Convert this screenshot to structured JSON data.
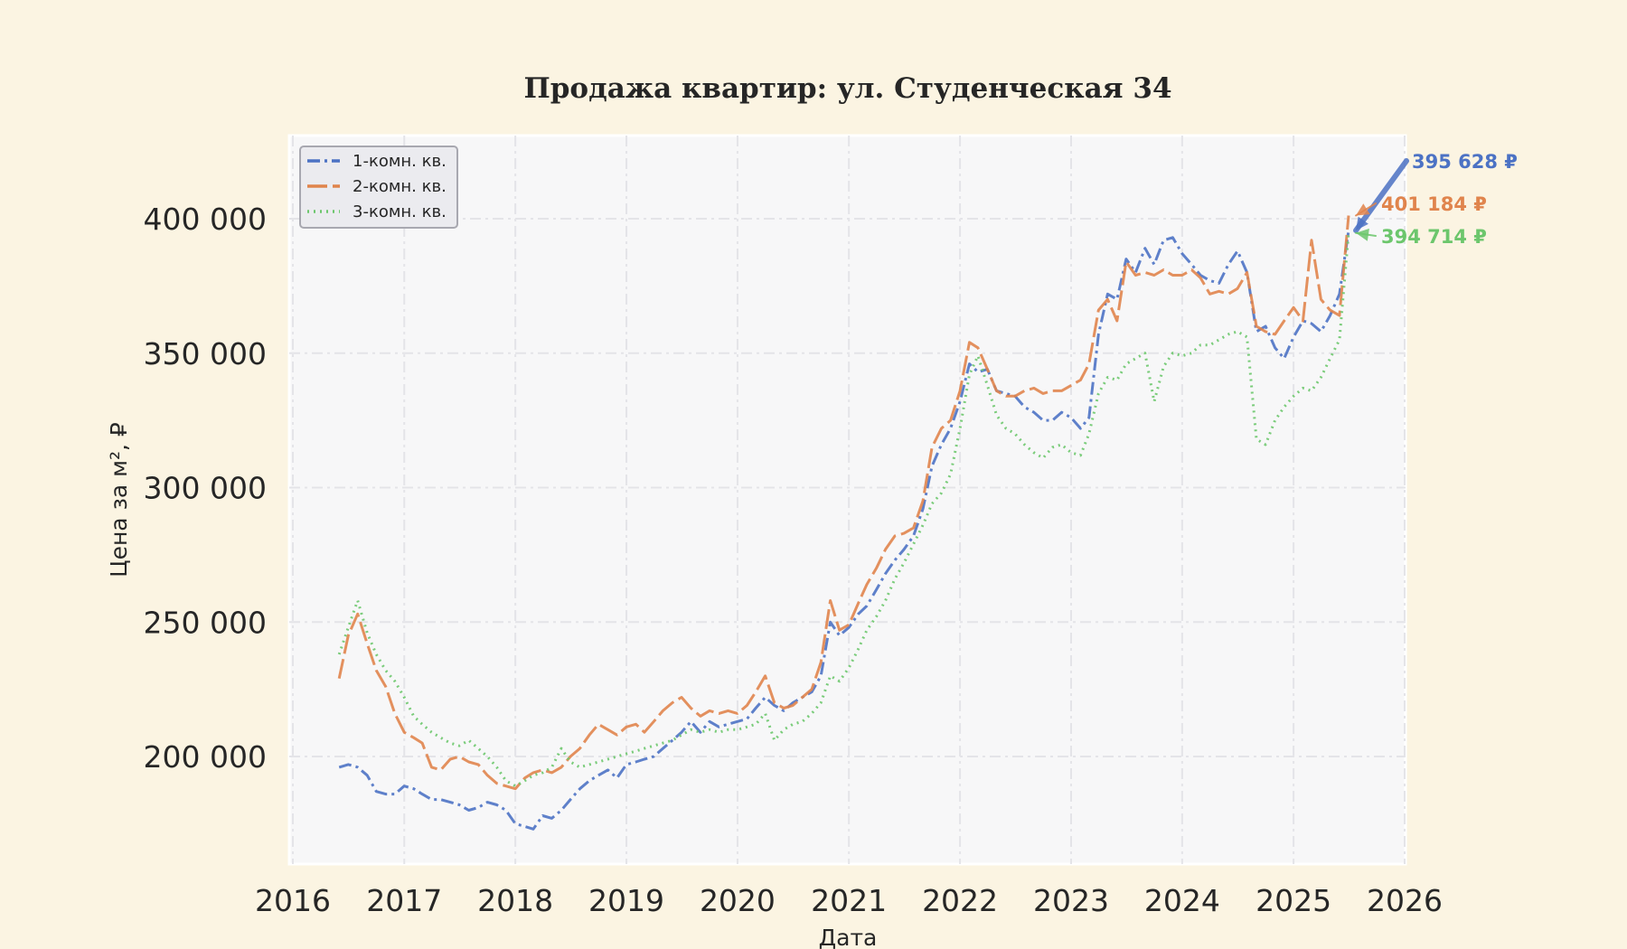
{
  "chart_data": {
    "type": "line",
    "title": "Продажа квартир: ул. Студенческая 34",
    "xlabel": "Дата",
    "ylabel": "Цена за м², ₽",
    "x_type": "date",
    "xlim": [
      "2016-01-01",
      "2026-01-01"
    ],
    "ylim": [
      160000,
      430000
    ],
    "x_ticks": [
      "2016",
      "2017",
      "2018",
      "2019",
      "2020",
      "2021",
      "2022",
      "2023",
      "2024",
      "2025",
      "2026"
    ],
    "y_ticks": [
      200000,
      250000,
      300000,
      350000,
      400000
    ],
    "y_tick_labels": [
      "200 000",
      "250 000",
      "300 000",
      "350 000",
      "400 000"
    ],
    "grid": true,
    "legend_position": "top-left",
    "series": [
      {
        "name": "1-комн. кв.",
        "color": "#4c72c4",
        "dash": "dashdot",
        "x": [
          "2016-06-01",
          "2016-07-01",
          "2016-08-01",
          "2016-09-01",
          "2016-10-01",
          "2016-11-01",
          "2016-12-01",
          "2017-01-01",
          "2017-02-01",
          "2017-03-01",
          "2017-04-01",
          "2017-05-01",
          "2017-06-01",
          "2017-07-01",
          "2017-08-01",
          "2017-09-01",
          "2017-10-01",
          "2017-11-01",
          "2017-12-01",
          "2018-01-01",
          "2018-02-01",
          "2018-03-01",
          "2018-04-01",
          "2018-05-01",
          "2018-06-01",
          "2018-07-01",
          "2018-08-01",
          "2018-09-01",
          "2018-10-01",
          "2018-11-01",
          "2018-12-01",
          "2019-01-01",
          "2019-02-01",
          "2019-03-01",
          "2019-04-01",
          "2019-05-01",
          "2019-06-01",
          "2019-07-01",
          "2019-08-01",
          "2019-09-01",
          "2019-10-01",
          "2019-11-01",
          "2019-12-01",
          "2020-01-01",
          "2020-02-01",
          "2020-03-01",
          "2020-04-01",
          "2020-05-01",
          "2020-06-01",
          "2020-07-01",
          "2020-08-01",
          "2020-09-01",
          "2020-10-01",
          "2020-11-01",
          "2020-12-01",
          "2021-01-01",
          "2021-02-01",
          "2021-03-01",
          "2021-04-01",
          "2021-05-01",
          "2021-06-01",
          "2021-07-01",
          "2021-08-01",
          "2021-09-01",
          "2021-10-01",
          "2021-11-01",
          "2021-12-01",
          "2022-01-01",
          "2022-02-01",
          "2022-03-01",
          "2022-04-01",
          "2022-05-01",
          "2022-06-01",
          "2022-07-01",
          "2022-08-01",
          "2022-09-01",
          "2022-10-01",
          "2022-11-01",
          "2022-12-01",
          "2023-01-01",
          "2023-02-01",
          "2023-03-01",
          "2023-04-01",
          "2023-05-01",
          "2023-06-01",
          "2023-07-01",
          "2023-08-01",
          "2023-09-01",
          "2023-10-01",
          "2023-11-01",
          "2023-12-01",
          "2024-01-01",
          "2024-02-01",
          "2024-03-01",
          "2024-04-01",
          "2024-05-01",
          "2024-06-01",
          "2024-07-01",
          "2024-08-01",
          "2024-09-01",
          "2024-10-01",
          "2024-11-01",
          "2024-12-01",
          "2025-01-01",
          "2025-02-01",
          "2025-03-01",
          "2025-04-01",
          "2025-05-01",
          "2025-06-01",
          "2025-07-01"
        ],
        "y": [
          196000,
          197000,
          196000,
          193000,
          187000,
          186000,
          186000,
          189000,
          188000,
          186000,
          184000,
          184000,
          183000,
          182000,
          180000,
          181000,
          183000,
          182000,
          180000,
          175000,
          174000,
          173000,
          178000,
          177000,
          180000,
          184000,
          188000,
          191000,
          193000,
          195000,
          192000,
          197000,
          198000,
          199000,
          200000,
          203000,
          206000,
          209000,
          213000,
          209000,
          213000,
          211000,
          212000,
          213000,
          214000,
          218000,
          222000,
          219000,
          217000,
          220000,
          222000,
          224000,
          230000,
          250000,
          245000,
          248000,
          253000,
          256000,
          262000,
          268000,
          273000,
          277000,
          282000,
          292000,
          308000,
          316000,
          322000,
          332000,
          346000,
          343000,
          344000,
          336000,
          335000,
          334000,
          330000,
          328000,
          325000,
          325000,
          328000,
          326000,
          322000,
          326000,
          357000,
          372000,
          370000,
          385000,
          380000,
          389000,
          383000,
          392000,
          393000,
          387000,
          383000,
          379000,
          377000,
          376000,
          383000,
          388000,
          380000,
          358000,
          360000,
          352000,
          348000,
          356000,
          362000,
          361000,
          358000,
          364000,
          372000,
          395628
        ]
      },
      {
        "name": "2-комн. кв.",
        "color": "#e0844c",
        "dash": "longdash",
        "x": [
          "2016-06-01",
          "2016-07-01",
          "2016-08-01",
          "2016-09-01",
          "2016-10-01",
          "2016-11-01",
          "2016-12-01",
          "2017-01-01",
          "2017-02-01",
          "2017-03-01",
          "2017-04-01",
          "2017-05-01",
          "2017-06-01",
          "2017-07-01",
          "2017-08-01",
          "2017-09-01",
          "2017-10-01",
          "2017-11-01",
          "2017-12-01",
          "2018-01-01",
          "2018-02-01",
          "2018-03-01",
          "2018-04-01",
          "2018-05-01",
          "2018-06-01",
          "2018-07-01",
          "2018-08-01",
          "2018-09-01",
          "2018-10-01",
          "2018-11-01",
          "2018-12-01",
          "2019-01-01",
          "2019-02-01",
          "2019-03-01",
          "2019-04-01",
          "2019-05-01",
          "2019-06-01",
          "2019-07-01",
          "2019-08-01",
          "2019-09-01",
          "2019-10-01",
          "2019-11-01",
          "2019-12-01",
          "2020-01-01",
          "2020-02-01",
          "2020-03-01",
          "2020-04-01",
          "2020-05-01",
          "2020-06-01",
          "2020-07-01",
          "2020-08-01",
          "2020-09-01",
          "2020-10-01",
          "2020-11-01",
          "2020-12-01",
          "2021-01-01",
          "2021-02-01",
          "2021-03-01",
          "2021-04-01",
          "2021-05-01",
          "2021-06-01",
          "2021-07-01",
          "2021-08-01",
          "2021-09-01",
          "2021-10-01",
          "2021-11-01",
          "2021-12-01",
          "2022-01-01",
          "2022-02-01",
          "2022-03-01",
          "2022-04-01",
          "2022-05-01",
          "2022-06-01",
          "2022-07-01",
          "2022-08-01",
          "2022-09-01",
          "2022-10-01",
          "2022-11-01",
          "2022-12-01",
          "2023-01-01",
          "2023-02-01",
          "2023-03-01",
          "2023-04-01",
          "2023-05-01",
          "2023-06-01",
          "2023-07-01",
          "2023-08-01",
          "2023-09-01",
          "2023-10-01",
          "2023-11-01",
          "2023-12-01",
          "2024-01-01",
          "2024-02-01",
          "2024-03-01",
          "2024-04-01",
          "2024-05-01",
          "2024-06-01",
          "2024-07-01",
          "2024-08-01",
          "2024-09-01",
          "2024-10-01",
          "2024-11-01",
          "2024-12-01",
          "2025-01-01",
          "2025-02-01",
          "2025-03-01",
          "2025-04-01",
          "2025-05-01",
          "2025-06-01",
          "2025-07-01"
        ],
        "y": [
          229000,
          245000,
          253000,
          242000,
          232000,
          226000,
          216000,
          209000,
          207000,
          205000,
          196000,
          195000,
          199000,
          200000,
          198000,
          197000,
          193000,
          190000,
          189000,
          188000,
          192000,
          194000,
          195000,
          194000,
          196000,
          200000,
          203000,
          208000,
          212000,
          210000,
          208000,
          211000,
          212000,
          209000,
          213000,
          217000,
          220000,
          222000,
          218000,
          215000,
          217000,
          216000,
          217000,
          216000,
          219000,
          224000,
          230000,
          220000,
          218000,
          219000,
          222000,
          225000,
          235000,
          258000,
          247000,
          249000,
          257000,
          264000,
          270000,
          277000,
          282000,
          283000,
          285000,
          295000,
          315000,
          322000,
          325000,
          336000,
          354000,
          352000,
          344000,
          336000,
          334000,
          334000,
          336000,
          337000,
          335000,
          336000,
          336000,
          338000,
          340000,
          346000,
          366000,
          370000,
          362000,
          384000,
          379000,
          380000,
          379000,
          381000,
          379000,
          379000,
          381000,
          378000,
          372000,
          373000,
          372000,
          374000,
          380000,
          360000,
          358000,
          357000,
          362000,
          367000,
          362000,
          392000,
          370000,
          366000,
          364000,
          401184
        ]
      },
      {
        "name": "3-комн. кв.",
        "color": "#6cc66c",
        "dash": "dotted",
        "x": [
          "2016-06-01",
          "2016-07-01",
          "2016-08-01",
          "2016-09-01",
          "2016-10-01",
          "2016-11-01",
          "2016-12-01",
          "2017-01-01",
          "2017-02-01",
          "2017-03-01",
          "2017-04-01",
          "2017-05-01",
          "2017-06-01",
          "2017-07-01",
          "2017-08-01",
          "2017-09-01",
          "2017-10-01",
          "2017-11-01",
          "2017-12-01",
          "2018-01-01",
          "2018-02-01",
          "2018-03-01",
          "2018-04-01",
          "2018-05-01",
          "2018-06-01",
          "2018-07-01",
          "2018-08-01",
          "2018-09-01",
          "2018-10-01",
          "2018-11-01",
          "2018-12-01",
          "2019-01-01",
          "2019-02-01",
          "2019-03-01",
          "2019-04-01",
          "2019-05-01",
          "2019-06-01",
          "2019-07-01",
          "2019-08-01",
          "2019-09-01",
          "2019-10-01",
          "2019-11-01",
          "2019-12-01",
          "2020-01-01",
          "2020-02-01",
          "2020-03-01",
          "2020-04-01",
          "2020-05-01",
          "2020-06-01",
          "2020-07-01",
          "2020-08-01",
          "2020-09-01",
          "2020-10-01",
          "2020-11-01",
          "2020-12-01",
          "2021-01-01",
          "2021-02-01",
          "2021-03-01",
          "2021-04-01",
          "2021-05-01",
          "2021-06-01",
          "2021-07-01",
          "2021-08-01",
          "2021-09-01",
          "2021-10-01",
          "2021-11-01",
          "2021-12-01",
          "2022-01-01",
          "2022-02-01",
          "2022-03-01",
          "2022-04-01",
          "2022-05-01",
          "2022-06-01",
          "2022-07-01",
          "2022-08-01",
          "2022-09-01",
          "2022-10-01",
          "2022-11-01",
          "2022-12-01",
          "2023-01-01",
          "2023-02-01",
          "2023-03-01",
          "2023-04-01",
          "2023-05-01",
          "2023-06-01",
          "2023-07-01",
          "2023-08-01",
          "2023-09-01",
          "2023-10-01",
          "2023-11-01",
          "2023-12-01",
          "2024-01-01",
          "2024-02-01",
          "2024-03-01",
          "2024-04-01",
          "2024-05-01",
          "2024-06-01",
          "2024-07-01",
          "2024-08-01",
          "2024-09-01",
          "2024-10-01",
          "2024-11-01",
          "2024-12-01",
          "2025-01-01",
          "2025-02-01",
          "2025-03-01",
          "2025-04-01",
          "2025-05-01",
          "2025-06-01",
          "2025-07-01"
        ],
        "y": [
          238000,
          248000,
          258000,
          246000,
          238000,
          232000,
          228000,
          222000,
          215000,
          212000,
          209000,
          207000,
          205000,
          204000,
          206000,
          203000,
          200000,
          196000,
          191000,
          189000,
          191000,
          193000,
          194000,
          196000,
          203000,
          198000,
          196000,
          197000,
          198000,
          199000,
          200000,
          201000,
          202000,
          203000,
          204000,
          205000,
          206000,
          208000,
          210000,
          209000,
          210000,
          209000,
          210000,
          210000,
          211000,
          212000,
          216000,
          206000,
          210000,
          212000,
          213000,
          216000,
          220000,
          230000,
          228000,
          233000,
          240000,
          247000,
          252000,
          258000,
          266000,
          272000,
          279000,
          286000,
          294000,
          298000,
          305000,
          322000,
          342000,
          349000,
          338000,
          327000,
          322000,
          320000,
          316000,
          313000,
          311000,
          315000,
          316000,
          313000,
          312000,
          320000,
          335000,
          341000,
          340000,
          346000,
          348000,
          350000,
          332000,
          345000,
          350000,
          349000,
          350000,
          353000,
          353000,
          355000,
          357000,
          358000,
          356000,
          318000,
          316000,
          325000,
          330000,
          334000,
          337000,
          336000,
          341000,
          348000,
          355000,
          394714
        ]
      }
    ],
    "annotations": [
      {
        "series": 0,
        "text": "395 628 ₽",
        "color": "#4c72c4"
      },
      {
        "series": 1,
        "text": "401 184 ₽",
        "color": "#e0844c"
      },
      {
        "series": 2,
        "text": "394 714 ₽",
        "color": "#6cc66c"
      }
    ],
    "colors": {
      "page_bg": "#fbf4e2",
      "plot_bg": "#f7f7f8",
      "grid": "#e4e4e8",
      "text": "#262626"
    }
  }
}
